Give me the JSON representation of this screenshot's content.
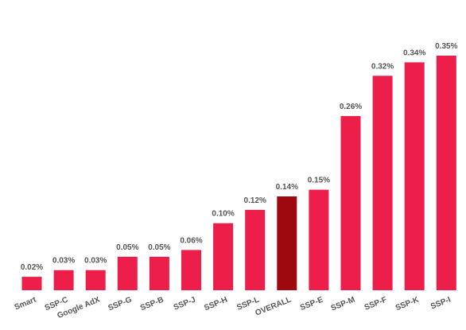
{
  "chart_data": {
    "type": "bar",
    "categories": [
      "Smart",
      "SSP-C",
      "Google AdX",
      "SSP-G",
      "SSP-B",
      "SSP-J",
      "SSP-H",
      "SSP-L",
      "OVERALL",
      "SSP-E",
      "SSP-M",
      "SSP-F",
      "SSP-K",
      "SSP-I"
    ],
    "values": [
      0.02,
      0.03,
      0.03,
      0.05,
      0.05,
      0.06,
      0.1,
      0.12,
      0.14,
      0.15,
      0.26,
      0.32,
      0.34,
      0.35
    ],
    "data_labels": [
      "0.02%",
      "0.03%",
      "0.03%",
      "0.05%",
      "0.05%",
      "0.06%",
      "0.10%",
      "0.12%",
      "0.14%",
      "0.15%",
      "0.26%",
      "0.32%",
      "0.34%",
      "0.35%"
    ],
    "highlight": "OVERALL",
    "ylim": [
      0,
      0.35
    ],
    "grid": false,
    "colors": {
      "bar": "#EE1E4A",
      "highlight": "#A00810",
      "label": "#555555"
    }
  }
}
